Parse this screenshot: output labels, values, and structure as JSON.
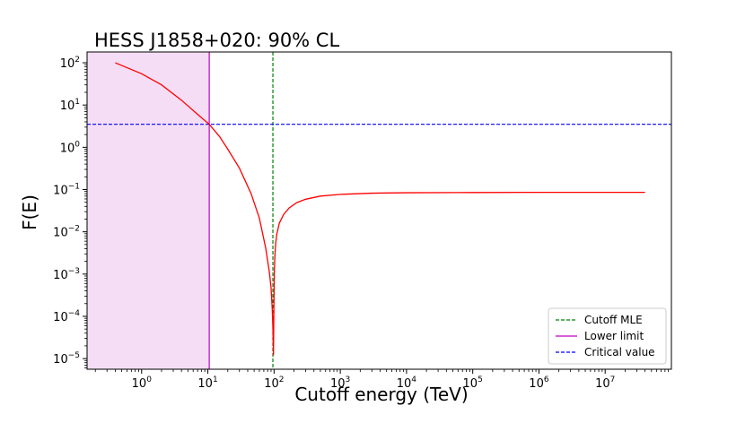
{
  "chart_data": {
    "type": "line",
    "title": "HESS J1858+020: 90% CL",
    "xlabel": "Cutoff energy (TeV)",
    "ylabel": "F(E)",
    "x_scale": "log",
    "y_scale": "log",
    "xlim": [
      0.15,
      100000000
    ],
    "ylim": [
      5.6e-06,
      180
    ],
    "x_ticks": [
      {
        "base": "10",
        "exp": "0",
        "value": 1
      },
      {
        "base": "10",
        "exp": "1",
        "value": 10
      },
      {
        "base": "10",
        "exp": "2",
        "value": 100
      },
      {
        "base": "10",
        "exp": "3",
        "value": 1000
      },
      {
        "base": "10",
        "exp": "4",
        "value": 10000
      },
      {
        "base": "10",
        "exp": "5",
        "value": 100000
      },
      {
        "base": "10",
        "exp": "6",
        "value": 1000000
      },
      {
        "base": "10",
        "exp": "7",
        "value": 10000000
      }
    ],
    "y_ticks": [
      {
        "base": "10",
        "exp": "2",
        "value": 100
      },
      {
        "base": "10",
        "exp": "1",
        "value": 10
      },
      {
        "base": "10",
        "exp": "0",
        "value": 1
      },
      {
        "base": "10",
        "exp": "−1",
        "value": 0.1
      },
      {
        "base": "10",
        "exp": "−2",
        "value": 0.01
      },
      {
        "base": "10",
        "exp": "−3",
        "value": 0.001
      },
      {
        "base": "10",
        "exp": "−4",
        "value": 0.0001
      },
      {
        "base": "10",
        "exp": "−5",
        "value": 1e-05
      }
    ],
    "series": [
      {
        "color": "#ff0000",
        "style": "solid",
        "x": [
          0.4,
          1,
          2,
          4,
          7,
          10.5,
          15,
          20,
          30,
          45,
          60,
          75,
          85,
          90,
          94,
          96,
          97,
          98,
          99,
          100,
          101,
          103,
          106,
          110,
          120,
          140,
          170,
          220,
          300,
          500,
          1000,
          3000,
          10000,
          100000,
          1000000,
          10000000,
          40000000
        ],
        "y": [
          100,
          55,
          30,
          13,
          6,
          3.5,
          1.8,
          0.9,
          0.32,
          0.08,
          0.021,
          0.004,
          0.0011,
          0.00048,
          0.00014,
          5.5e-05,
          2.5e-05,
          1.2e-05,
          8e-05,
          0.0004,
          0.0012,
          0.0028,
          0.0055,
          0.0088,
          0.016,
          0.026,
          0.037,
          0.049,
          0.059,
          0.07,
          0.077,
          0.082,
          0.084,
          0.085,
          0.086,
          0.086,
          0.086
        ]
      }
    ],
    "reference_lines": [
      {
        "kind": "vertical",
        "value": 96,
        "color": "#008000",
        "style": "dashed",
        "legend": "Cutoff MLE"
      },
      {
        "kind": "vertical",
        "value": 10.5,
        "color": "#bf00bf",
        "style": "solid",
        "legend": "Lower limit"
      },
      {
        "kind": "horizontal",
        "value": 3.5,
        "color": "#0000ff",
        "style": "dashed",
        "legend": "Critical value"
      }
    ],
    "shaded_region": {
      "x_from": 0.15,
      "x_to": 10.5,
      "color": "#f5def5"
    },
    "legend": {
      "position": "bottom-right",
      "entries": [
        "Cutoff MLE",
        "Lower limit",
        "Critical value"
      ]
    },
    "grid": false
  }
}
